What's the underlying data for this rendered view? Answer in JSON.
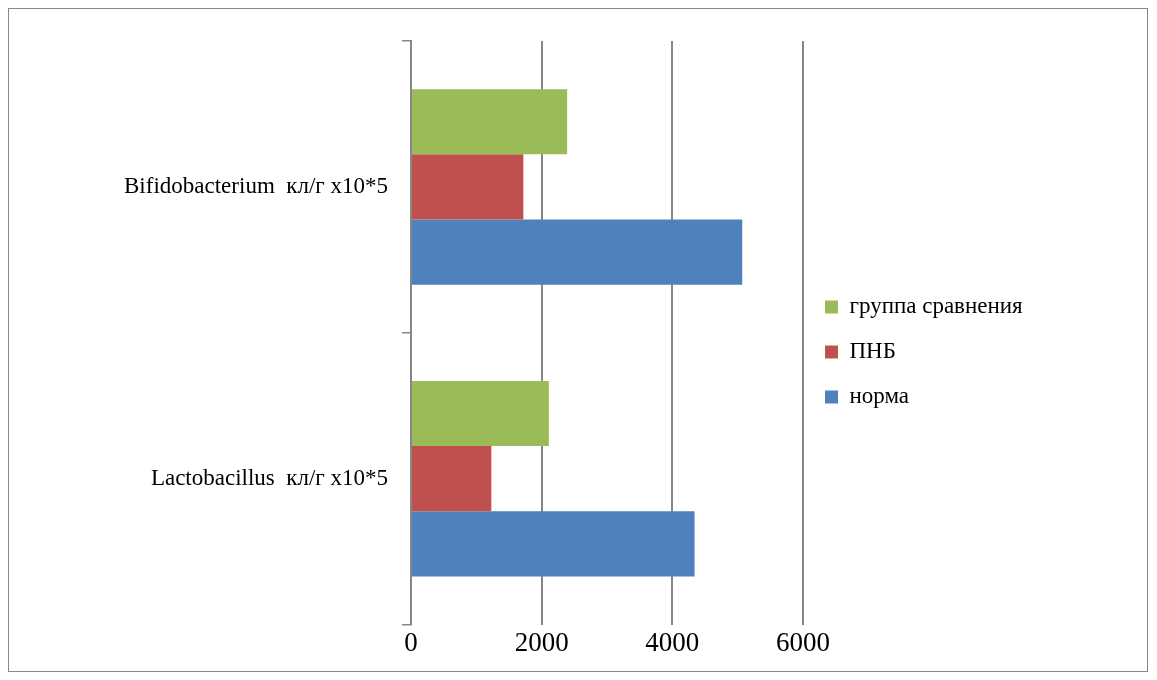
{
  "chart_data": {
    "type": "bar",
    "orientation": "horizontal",
    "categories": [
      "Bifidobacterium  кл/г х10*5",
      "Lactobacillus  кл/г х10*5"
    ],
    "series": [
      {
        "name": "группа сравнения",
        "color": "#9bbb59",
        "values": [
          2390,
          2110
        ]
      },
      {
        "name": "ПНБ",
        "color": "#c0504d",
        "values": [
          1720,
          1230
        ]
      },
      {
        "name": "норма",
        "color": "#4f81bd",
        "values": [
          5070,
          4340
        ]
      }
    ],
    "xlim": [
      0,
      6000
    ],
    "xticks": [
      0,
      2000,
      4000,
      6000
    ],
    "grid": "x",
    "legend": "right"
  }
}
